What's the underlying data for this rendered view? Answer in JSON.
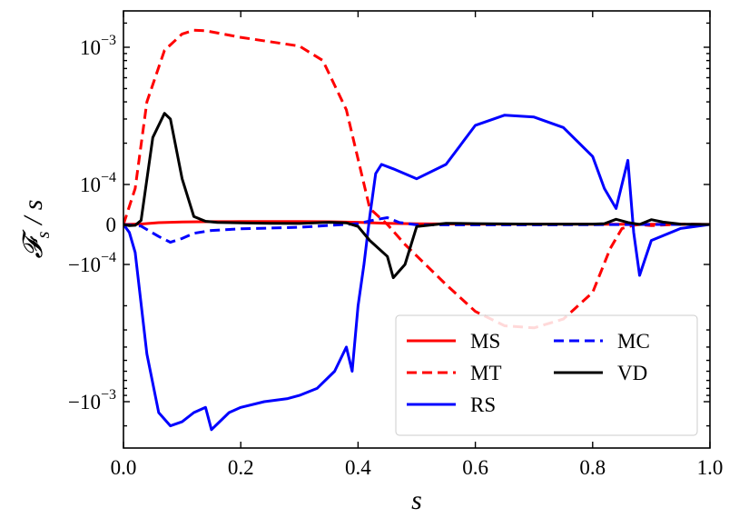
{
  "chart_data": {
    "type": "line",
    "xlabel": "s",
    "ylabel": "𝓕s / s",
    "ylabel_main": "𝓕",
    "ylabel_sub": "s",
    "ylabel_rest": " / s",
    "xlim": [
      0.0,
      1.0
    ],
    "yscale": "symlog",
    "ylim": [
      -0.0017,
      0.0017
    ],
    "x_ticks": [
      {
        "value": 0.0,
        "label": "0.0"
      },
      {
        "value": 0.2,
        "label": "0.2"
      },
      {
        "value": 0.4,
        "label": "0.4"
      },
      {
        "value": 0.6,
        "label": "0.6"
      },
      {
        "value": 0.8,
        "label": "0.8"
      },
      {
        "value": 1.0,
        "label": "1.0"
      }
    ],
    "y_ticks": [
      {
        "value": 0.001,
        "base": "10",
        "exp": "−3"
      },
      {
        "value": 0.0001,
        "base": "10",
        "exp": "−4"
      },
      {
        "value": 0.0,
        "base": "0",
        "exp": ""
      },
      {
        "value": -0.0001,
        "base": "−10",
        "exp": "−4"
      },
      {
        "value": -0.001,
        "base": "−10",
        "exp": "−3"
      }
    ],
    "legend": {
      "location": "lower-right",
      "columns": 2
    },
    "series": [
      {
        "name": "MS",
        "color": "#ff0000",
        "dash": "solid",
        "x": [
          0.0,
          0.03,
          0.06,
          0.1,
          0.15,
          0.2,
          0.3,
          0.35,
          0.4,
          0.45,
          0.5,
          0.6,
          0.7,
          0.8,
          0.9,
          1.0
        ],
        "y": [
          0.0,
          1.2e-06,
          4.5e-06,
          6.3e-06,
          7e-06,
          7.2e-06,
          7.2e-06,
          6.8e-06,
          5.5e-06,
          3e-06,
          1.5e-06,
          1e-06,
          8e-07,
          6e-07,
          4e-07,
          3e-07
        ]
      },
      {
        "name": "MT",
        "color": "#ff0000",
        "dash": "dashed",
        "x": [
          0.0,
          0.02,
          0.04,
          0.07,
          0.1,
          0.12,
          0.14,
          0.2,
          0.3,
          0.34,
          0.38,
          0.42,
          0.45,
          0.48,
          0.55,
          0.6,
          0.65,
          0.7,
          0.75,
          0.8,
          0.83,
          0.85,
          0.87,
          0.88,
          0.9,
          0.95,
          1.0
        ],
        "y": [
          0.0,
          9e-05,
          0.0004,
          0.00095,
          0.00125,
          0.00133,
          0.00132,
          0.00118,
          0.00102,
          0.0008,
          0.00035,
          4e-05,
          0.0,
          -5e-05,
          -0.00014,
          -0.00022,
          -0.00028,
          -0.00029,
          -0.00025,
          -0.00016,
          -6e-05,
          -1e-05,
          -2e-06,
          0.0,
          -3e-06,
          1e-06,
          0.0
        ]
      },
      {
        "name": "RS",
        "color": "#0000ff",
        "dash": "solid",
        "x": [
          0.0,
          0.01,
          0.02,
          0.04,
          0.06,
          0.08,
          0.1,
          0.12,
          0.14,
          0.15,
          0.18,
          0.2,
          0.24,
          0.28,
          0.3,
          0.33,
          0.36,
          0.38,
          0.39,
          0.4,
          0.41,
          0.42,
          0.43,
          0.44,
          0.46,
          0.5,
          0.55,
          0.6,
          0.65,
          0.7,
          0.75,
          0.8,
          0.82,
          0.84,
          0.86,
          0.87,
          0.88,
          0.9,
          0.95,
          1.0
        ],
        "y": [
          0.0,
          -2e-05,
          -7e-05,
          -0.00045,
          -0.0012,
          -0.0015,
          -0.0014,
          -0.0012,
          -0.0011,
          -0.0016,
          -0.0012,
          -0.0011,
          -0.001,
          -0.00095,
          -0.0009,
          -0.0008,
          -0.0006,
          -0.0004,
          -0.0006,
          -0.0002,
          -0.0001,
          2e-05,
          0.00012,
          0.00014,
          0.00013,
          0.00011,
          0.00014,
          0.00027,
          0.00032,
          0.00031,
          0.00026,
          0.00016,
          9e-05,
          4e-05,
          0.00015,
          -2e-05,
          -0.00012,
          -4e-05,
          -1e-05,
          0.0
        ]
      },
      {
        "name": "MC",
        "color": "#0000ff",
        "dash": "dashed",
        "x": [
          0.0,
          0.03,
          0.06,
          0.08,
          0.1,
          0.12,
          0.15,
          0.2,
          0.3,
          0.4,
          0.43,
          0.45,
          0.47,
          0.5,
          0.6,
          0.7,
          0.8,
          0.9,
          1.0
        ],
        "y": [
          0.0,
          -4e-06,
          -3e-05,
          -4.45e-05,
          -3.5e-05,
          -2.2e-05,
          -1.5e-05,
          -1.1e-05,
          -7e-06,
          2e-06,
          1.2e-05,
          1.7e-05,
          5e-06,
          -1e-06,
          -1e-06,
          -1e-06,
          -5e-07,
          0.0,
          0.0
        ]
      },
      {
        "name": "VD",
        "color": "#000000",
        "dash": "solid",
        "x": [
          0.0,
          0.01,
          0.02,
          0.03,
          0.05,
          0.07,
          0.08,
          0.1,
          0.12,
          0.14,
          0.16,
          0.2,
          0.25,
          0.3,
          0.35,
          0.38,
          0.4,
          0.42,
          0.45,
          0.46,
          0.48,
          0.5,
          0.55,
          0.6,
          0.7,
          0.8,
          0.82,
          0.84,
          0.86,
          0.88,
          0.9,
          0.92,
          0.95,
          1.0
        ],
        "y": [
          0.0,
          -3e-06,
          -2e-06,
          1e-05,
          0.00022,
          0.00033,
          0.0003,
          0.00011,
          2e-05,
          8e-06,
          5e-06,
          4e-06,
          3e-06,
          2.5e-06,
          5.5e-06,
          4e-06,
          -5e-06,
          -4e-05,
          -8e-05,
          -0.000125,
          -0.0001,
          -5e-06,
          3e-06,
          2e-06,
          1e-06,
          1e-06,
          2e-06,
          1.3e-05,
          5e-06,
          0.0,
          1.2e-05,
          6e-06,
          1e-06,
          0.0
        ]
      }
    ]
  }
}
